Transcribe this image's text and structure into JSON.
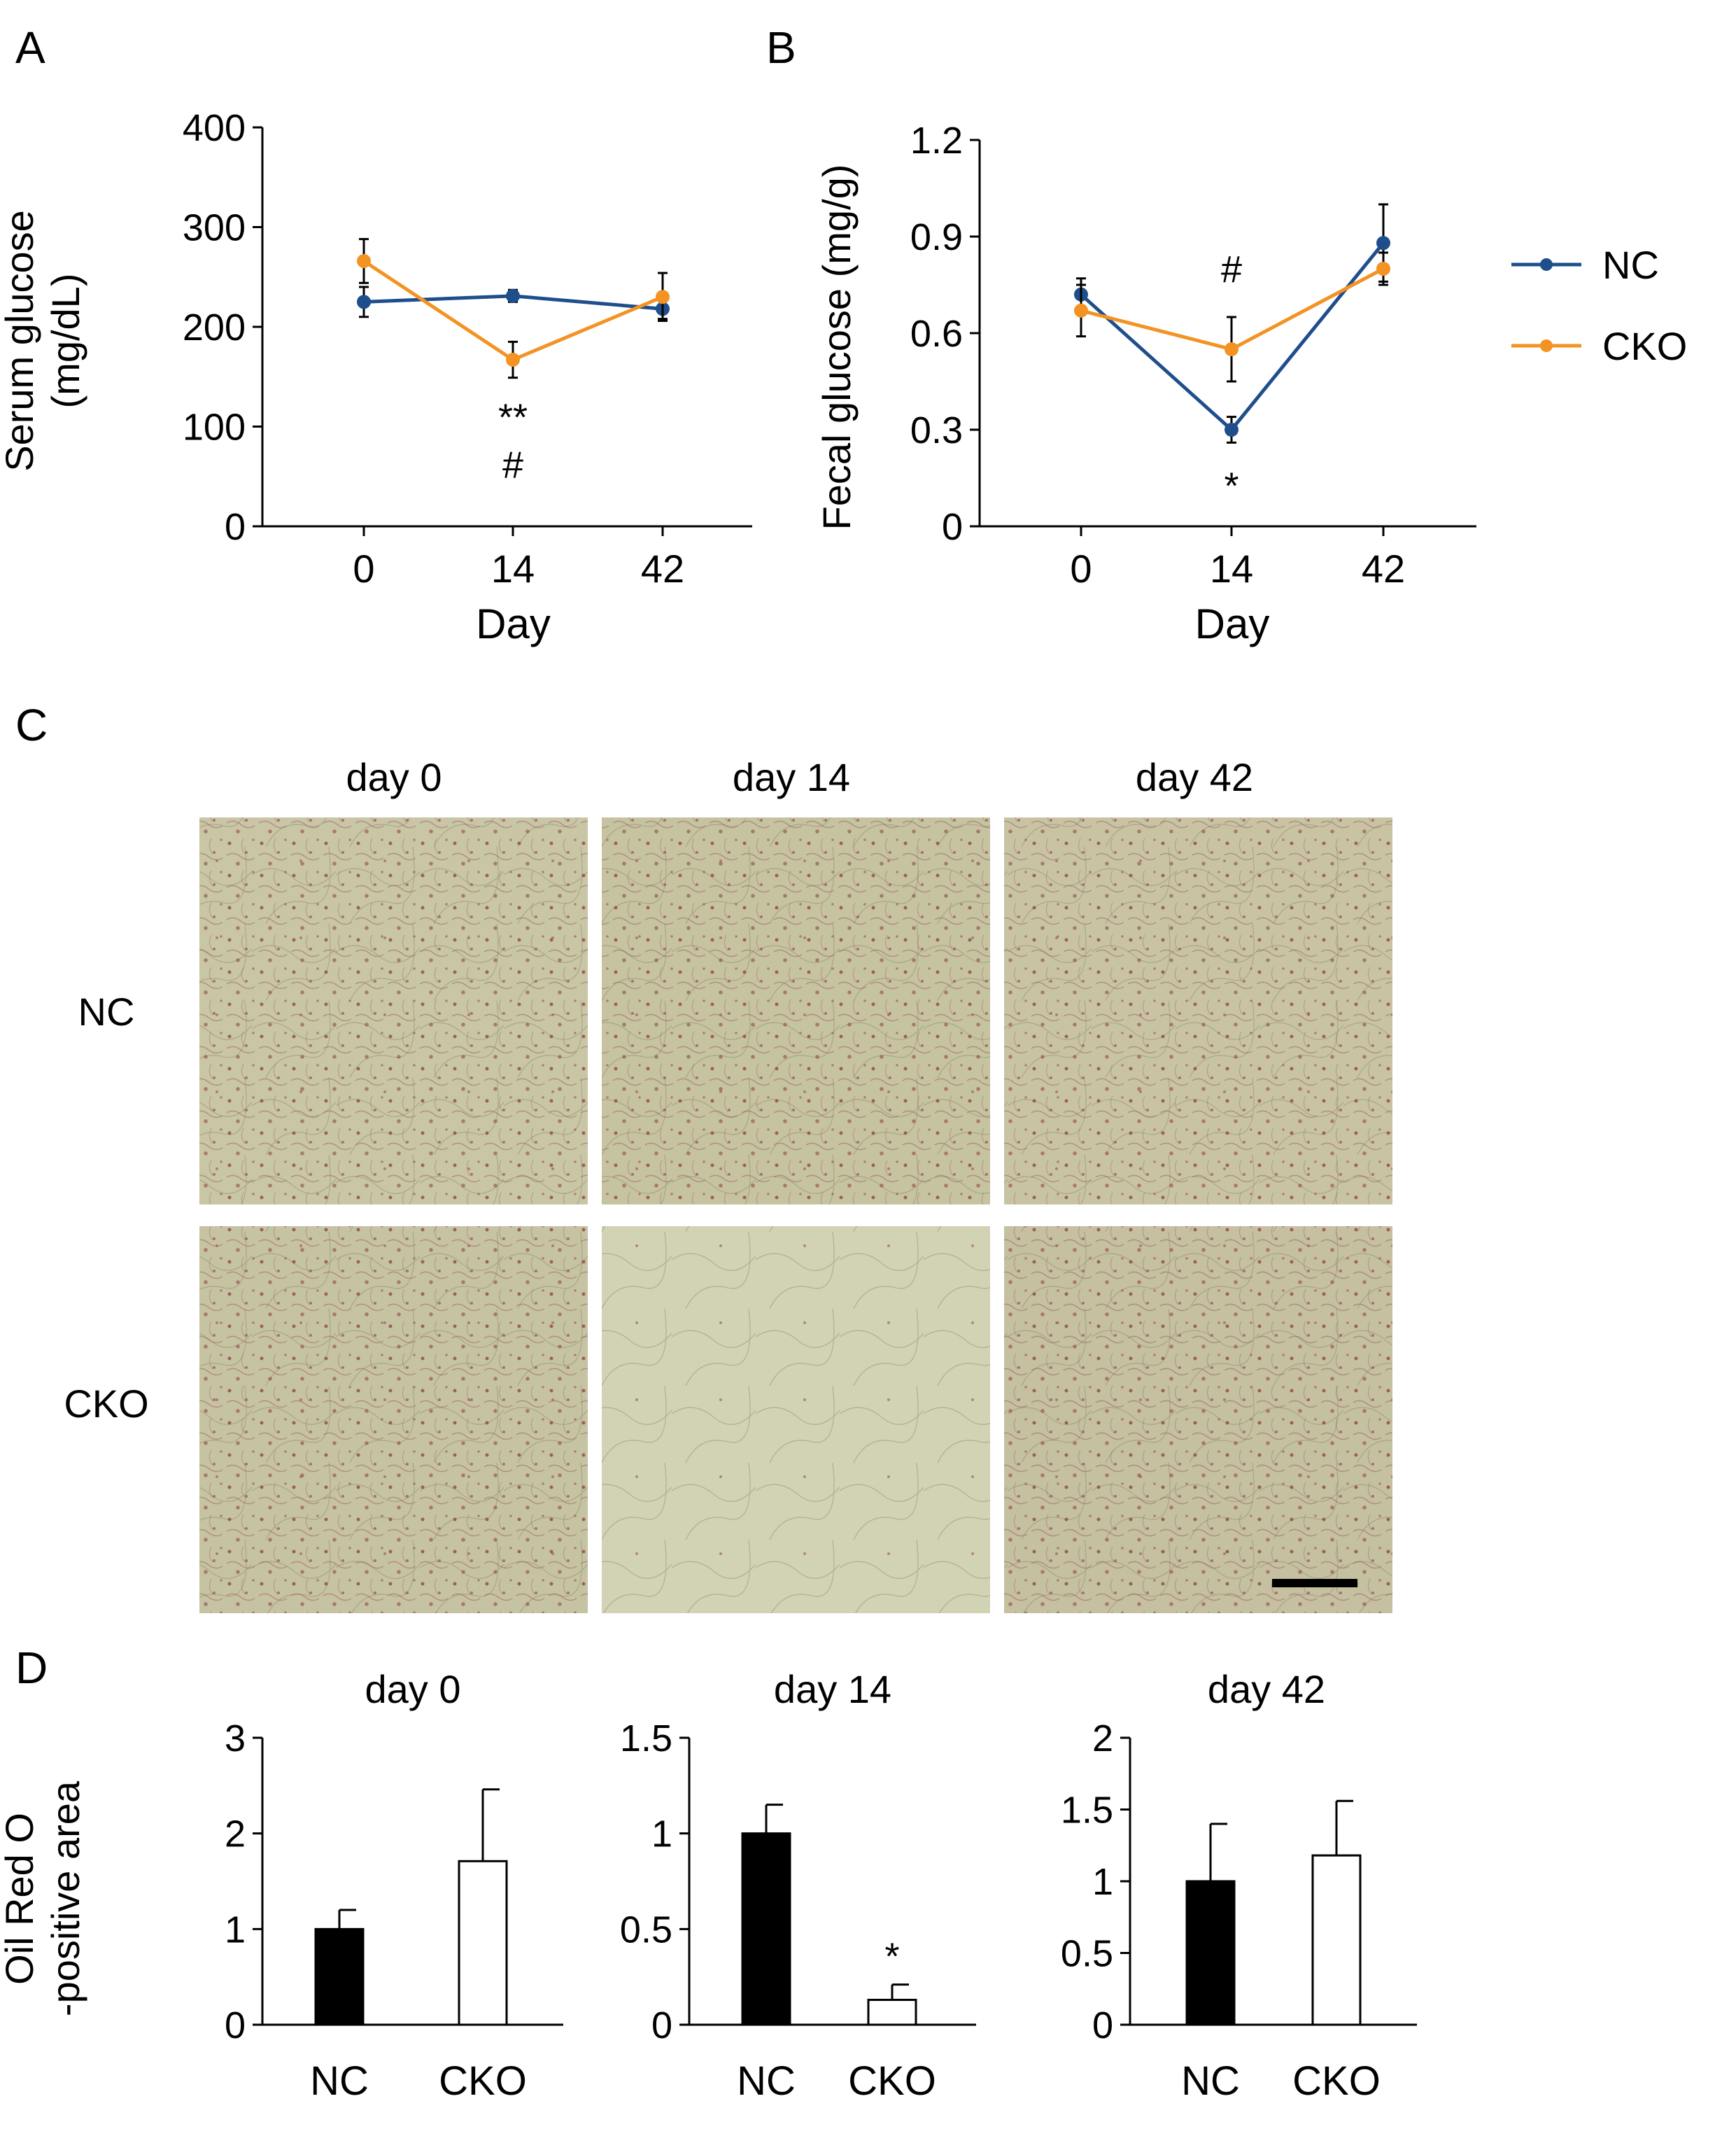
{
  "panel_labels": {
    "a": "A",
    "b": "B",
    "c": "C",
    "d": "D"
  },
  "legend": {
    "items": [
      {
        "label": "NC",
        "color": "#1f4e8c"
      },
      {
        "label": "CKO",
        "color": "#f39323"
      }
    ]
  },
  "micrographs": {
    "column_labels": [
      "day 0",
      "day 14",
      "day 42"
    ],
    "row_labels": [
      "NC",
      "CKO"
    ],
    "tissue_color": "#c9c7a6",
    "stain_color": "#8e3a4a"
  },
  "chart_data": [
    {
      "id": "A",
      "type": "line",
      "xlabel": "Day",
      "ylabel": "Serum glucose\n(mg/dL)",
      "categories": [
        "0",
        "14",
        "42"
      ],
      "ylim": [
        0,
        400
      ],
      "yticks": [
        0,
        100,
        200,
        300,
        400
      ],
      "series": [
        {
          "name": "NC",
          "color": "#1f4e8c",
          "values": [
            225,
            231,
            218
          ],
          "errors": [
            15,
            6,
            10
          ]
        },
        {
          "name": "CKO",
          "color": "#f39323",
          "values": [
            266,
            167,
            230
          ],
          "errors": [
            22,
            18,
            24
          ]
        }
      ],
      "annotations": [
        {
          "category": "14",
          "lines": [
            "**",
            "#"
          ]
        }
      ]
    },
    {
      "id": "B",
      "type": "line",
      "xlabel": "Day",
      "ylabel": "Fecal glucose (mg/g)",
      "categories": [
        "0",
        "14",
        "42"
      ],
      "ylim": [
        0,
        1.2
      ],
      "yticks": [
        "0",
        "0.3",
        "0.6",
        "0.9",
        "1.2"
      ],
      "series": [
        {
          "name": "NC",
          "color": "#1f4e8c",
          "values": [
            0.72,
            0.3,
            0.88
          ],
          "errors": [
            0.05,
            0.04,
            0.12
          ]
        },
        {
          "name": "CKO",
          "color": "#f39323",
          "values": [
            0.67,
            0.55,
            0.8
          ],
          "errors": [
            0.08,
            0.1,
            0.05
          ]
        }
      ],
      "annotations": [
        {
          "category": "14",
          "above_value": "#",
          "below_value": "*"
        }
      ]
    },
    {
      "id": "D1",
      "type": "bar",
      "title": "day 0",
      "ylabel": "Oil Red O\n-positive area",
      "categories": [
        "NC",
        "CKO"
      ],
      "values": [
        1.0,
        1.71
      ],
      "errors": [
        0.2,
        0.75
      ],
      "fills": [
        "#000000",
        "#ffffff"
      ],
      "ylim": [
        0,
        3
      ],
      "yticks": [
        "0",
        "1",
        "2",
        "3"
      ],
      "annotations": []
    },
    {
      "id": "D2",
      "type": "bar",
      "title": "day 14",
      "categories": [
        "NC",
        "CKO"
      ],
      "values": [
        1.0,
        0.13
      ],
      "errors": [
        0.15,
        0.08
      ],
      "fills": [
        "#000000",
        "#ffffff"
      ],
      "ylim": [
        0,
        1.5
      ],
      "yticks": [
        "0",
        "0.5",
        "1",
        "1.5"
      ],
      "annotations": [
        {
          "category": "CKO",
          "text": "*"
        }
      ]
    },
    {
      "id": "D3",
      "type": "bar",
      "title": "day 42",
      "categories": [
        "NC",
        "CKO"
      ],
      "values": [
        1.0,
        1.18
      ],
      "errors": [
        0.4,
        0.38
      ],
      "fills": [
        "#000000",
        "#ffffff"
      ],
      "ylim": [
        0,
        2
      ],
      "yticks": [
        "0",
        "0.5",
        "1",
        "1.5",
        "2"
      ],
      "annotations": []
    }
  ]
}
